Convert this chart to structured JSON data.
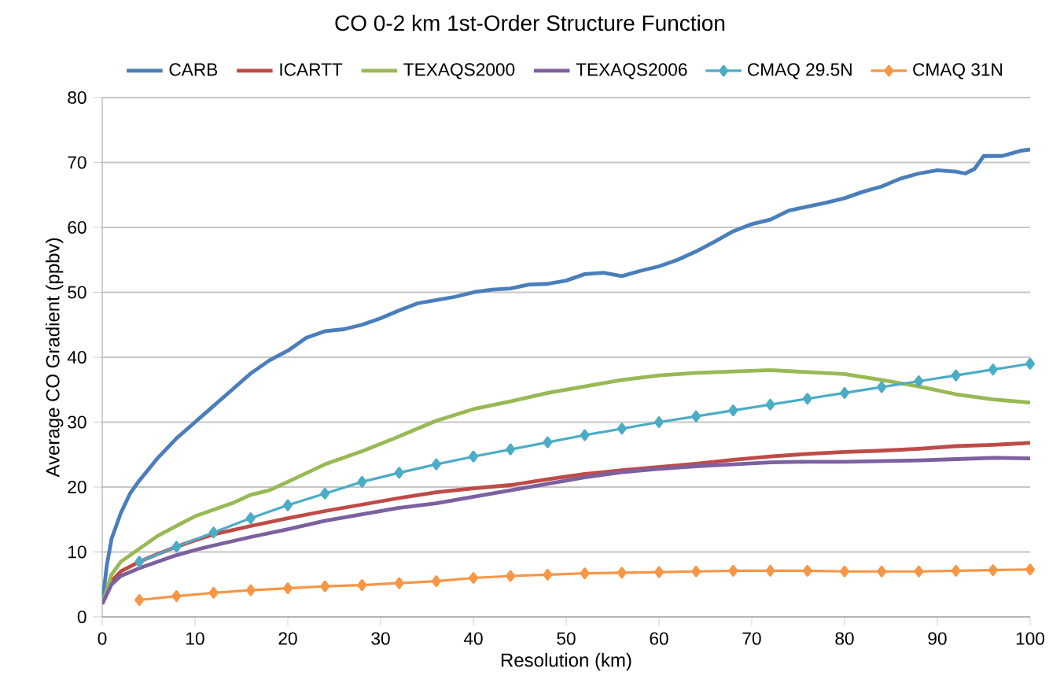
{
  "chart_data": {
    "type": "line",
    "title": "CO 0-2 km 1st-Order Structure Function",
    "xlabel": "Resolution (km)",
    "ylabel": "Average CO Gradient (ppbv)",
    "xlim": [
      0,
      100
    ],
    "xticks": [
      0,
      10,
      20,
      30,
      40,
      50,
      60,
      70,
      80,
      90,
      100
    ],
    "ylim": [
      0,
      80
    ],
    "yticks": [
      0,
      10,
      20,
      30,
      40,
      50,
      60,
      70,
      80
    ],
    "grid": "y",
    "legend": "top",
    "line_style": "solid",
    "series": [
      {
        "name": "CARB",
        "color": "#4a7ebb",
        "marker": "none",
        "x": [
          0,
          0.5,
          1,
          2,
          3,
          4,
          6,
          8,
          10,
          12,
          14,
          16,
          18,
          20,
          22,
          24,
          26,
          28,
          30,
          32,
          34,
          36,
          38,
          40,
          42,
          44,
          46,
          48,
          50,
          52,
          54,
          56,
          58,
          60,
          62,
          64,
          66,
          68,
          70,
          72,
          74,
          76,
          78,
          80,
          82,
          84,
          86,
          88,
          90,
          92,
          93,
          94,
          95,
          97,
          99,
          100
        ],
        "values": [
          2,
          8,
          12,
          16,
          19,
          21,
          24.5,
          27.5,
          30,
          32.5,
          35,
          37.5,
          39.5,
          41,
          43,
          44,
          44.3,
          45,
          46,
          47.2,
          48.3,
          48.8,
          49.3,
          50,
          50.4,
          50.6,
          51.2,
          51.3,
          51.8,
          52.8,
          53,
          52.5,
          53.3,
          54,
          55,
          56.3,
          57.8,
          59.4,
          60.5,
          61.2,
          62.6,
          63.2,
          63.8,
          64.5,
          65.5,
          66.3,
          67.5,
          68.3,
          68.8,
          68.6,
          68.3,
          69,
          71,
          71,
          71.8,
          72
        ]
      },
      {
        "name": "ICARTT",
        "color": "#be4b48",
        "marker": "none",
        "x": [
          0,
          1,
          2,
          4,
          6,
          8,
          10,
          12,
          16,
          20,
          24,
          28,
          32,
          36,
          40,
          44,
          48,
          52,
          56,
          60,
          64,
          68,
          72,
          76,
          80,
          84,
          88,
          92,
          96,
          100
        ],
        "values": [
          2,
          5.5,
          7,
          8.5,
          9.7,
          10.8,
          11.8,
          12.7,
          14,
          15.2,
          16.3,
          17.3,
          18.3,
          19.2,
          19.8,
          20.3,
          21.2,
          22,
          22.6,
          23.1,
          23.6,
          24.2,
          24.7,
          25.1,
          25.4,
          25.6,
          25.9,
          26.3,
          26.5,
          26.8
        ]
      },
      {
        "name": "TEXAQS2000",
        "color": "#98b954",
        "marker": "none",
        "x": [
          0,
          1,
          2,
          4,
          6,
          8,
          10,
          12,
          14,
          16,
          18,
          20,
          24,
          28,
          32,
          36,
          40,
          44,
          48,
          52,
          56,
          60,
          64,
          68,
          72,
          76,
          80,
          84,
          88,
          92,
          96,
          100
        ],
        "values": [
          2,
          6.5,
          8.5,
          10.5,
          12.5,
          14,
          15.5,
          16.5,
          17.5,
          18.8,
          19.5,
          20.8,
          23.5,
          25.5,
          27.8,
          30.2,
          32,
          33.2,
          34.5,
          35.5,
          36.5,
          37.2,
          37.6,
          37.8,
          38,
          37.7,
          37.4,
          36.5,
          35.5,
          34.3,
          33.5,
          33
        ]
      },
      {
        "name": "TEXAQS2006",
        "color": "#7d60a0",
        "marker": "none",
        "x": [
          0,
          1,
          2,
          4,
          6,
          8,
          10,
          12,
          16,
          20,
          24,
          28,
          32,
          36,
          40,
          44,
          48,
          52,
          56,
          60,
          64,
          68,
          72,
          76,
          80,
          84,
          88,
          92,
          96,
          100
        ],
        "values": [
          2,
          5,
          6.3,
          7.5,
          8.5,
          9.5,
          10.3,
          11,
          12.3,
          13.5,
          14.8,
          15.8,
          16.8,
          17.5,
          18.5,
          19.5,
          20.5,
          21.5,
          22.3,
          22.8,
          23.2,
          23.5,
          23.8,
          23.9,
          23.9,
          24,
          24.1,
          24.3,
          24.5,
          24.4
        ]
      },
      {
        "name": "CMAQ 29.5N",
        "color": "#4bacc6",
        "marker": "diamond",
        "x": [
          4,
          8,
          12,
          16,
          20,
          24,
          28,
          32,
          36,
          40,
          44,
          48,
          52,
          56,
          60,
          64,
          68,
          72,
          76,
          80,
          84,
          88,
          92,
          96,
          100
        ],
        "values": [
          8.5,
          10.8,
          13,
          15.2,
          17.2,
          19,
          20.8,
          22.2,
          23.5,
          24.7,
          25.8,
          26.9,
          28,
          29,
          30,
          30.9,
          31.8,
          32.7,
          33.6,
          34.5,
          35.4,
          36.3,
          37.2,
          38.1,
          39
        ]
      },
      {
        "name": "CMAQ 31N",
        "color": "#f79646",
        "marker": "diamond",
        "x": [
          4,
          8,
          12,
          16,
          20,
          24,
          28,
          32,
          36,
          40,
          44,
          48,
          52,
          56,
          60,
          64,
          68,
          72,
          76,
          80,
          84,
          88,
          92,
          96,
          100
        ],
        "values": [
          2.6,
          3.2,
          3.7,
          4.1,
          4.4,
          4.7,
          4.9,
          5.2,
          5.5,
          6.0,
          6.3,
          6.5,
          6.7,
          6.8,
          6.9,
          7.0,
          7.1,
          7.1,
          7.1,
          7.0,
          7.0,
          7.0,
          7.1,
          7.2,
          7.3
        ]
      }
    ]
  }
}
